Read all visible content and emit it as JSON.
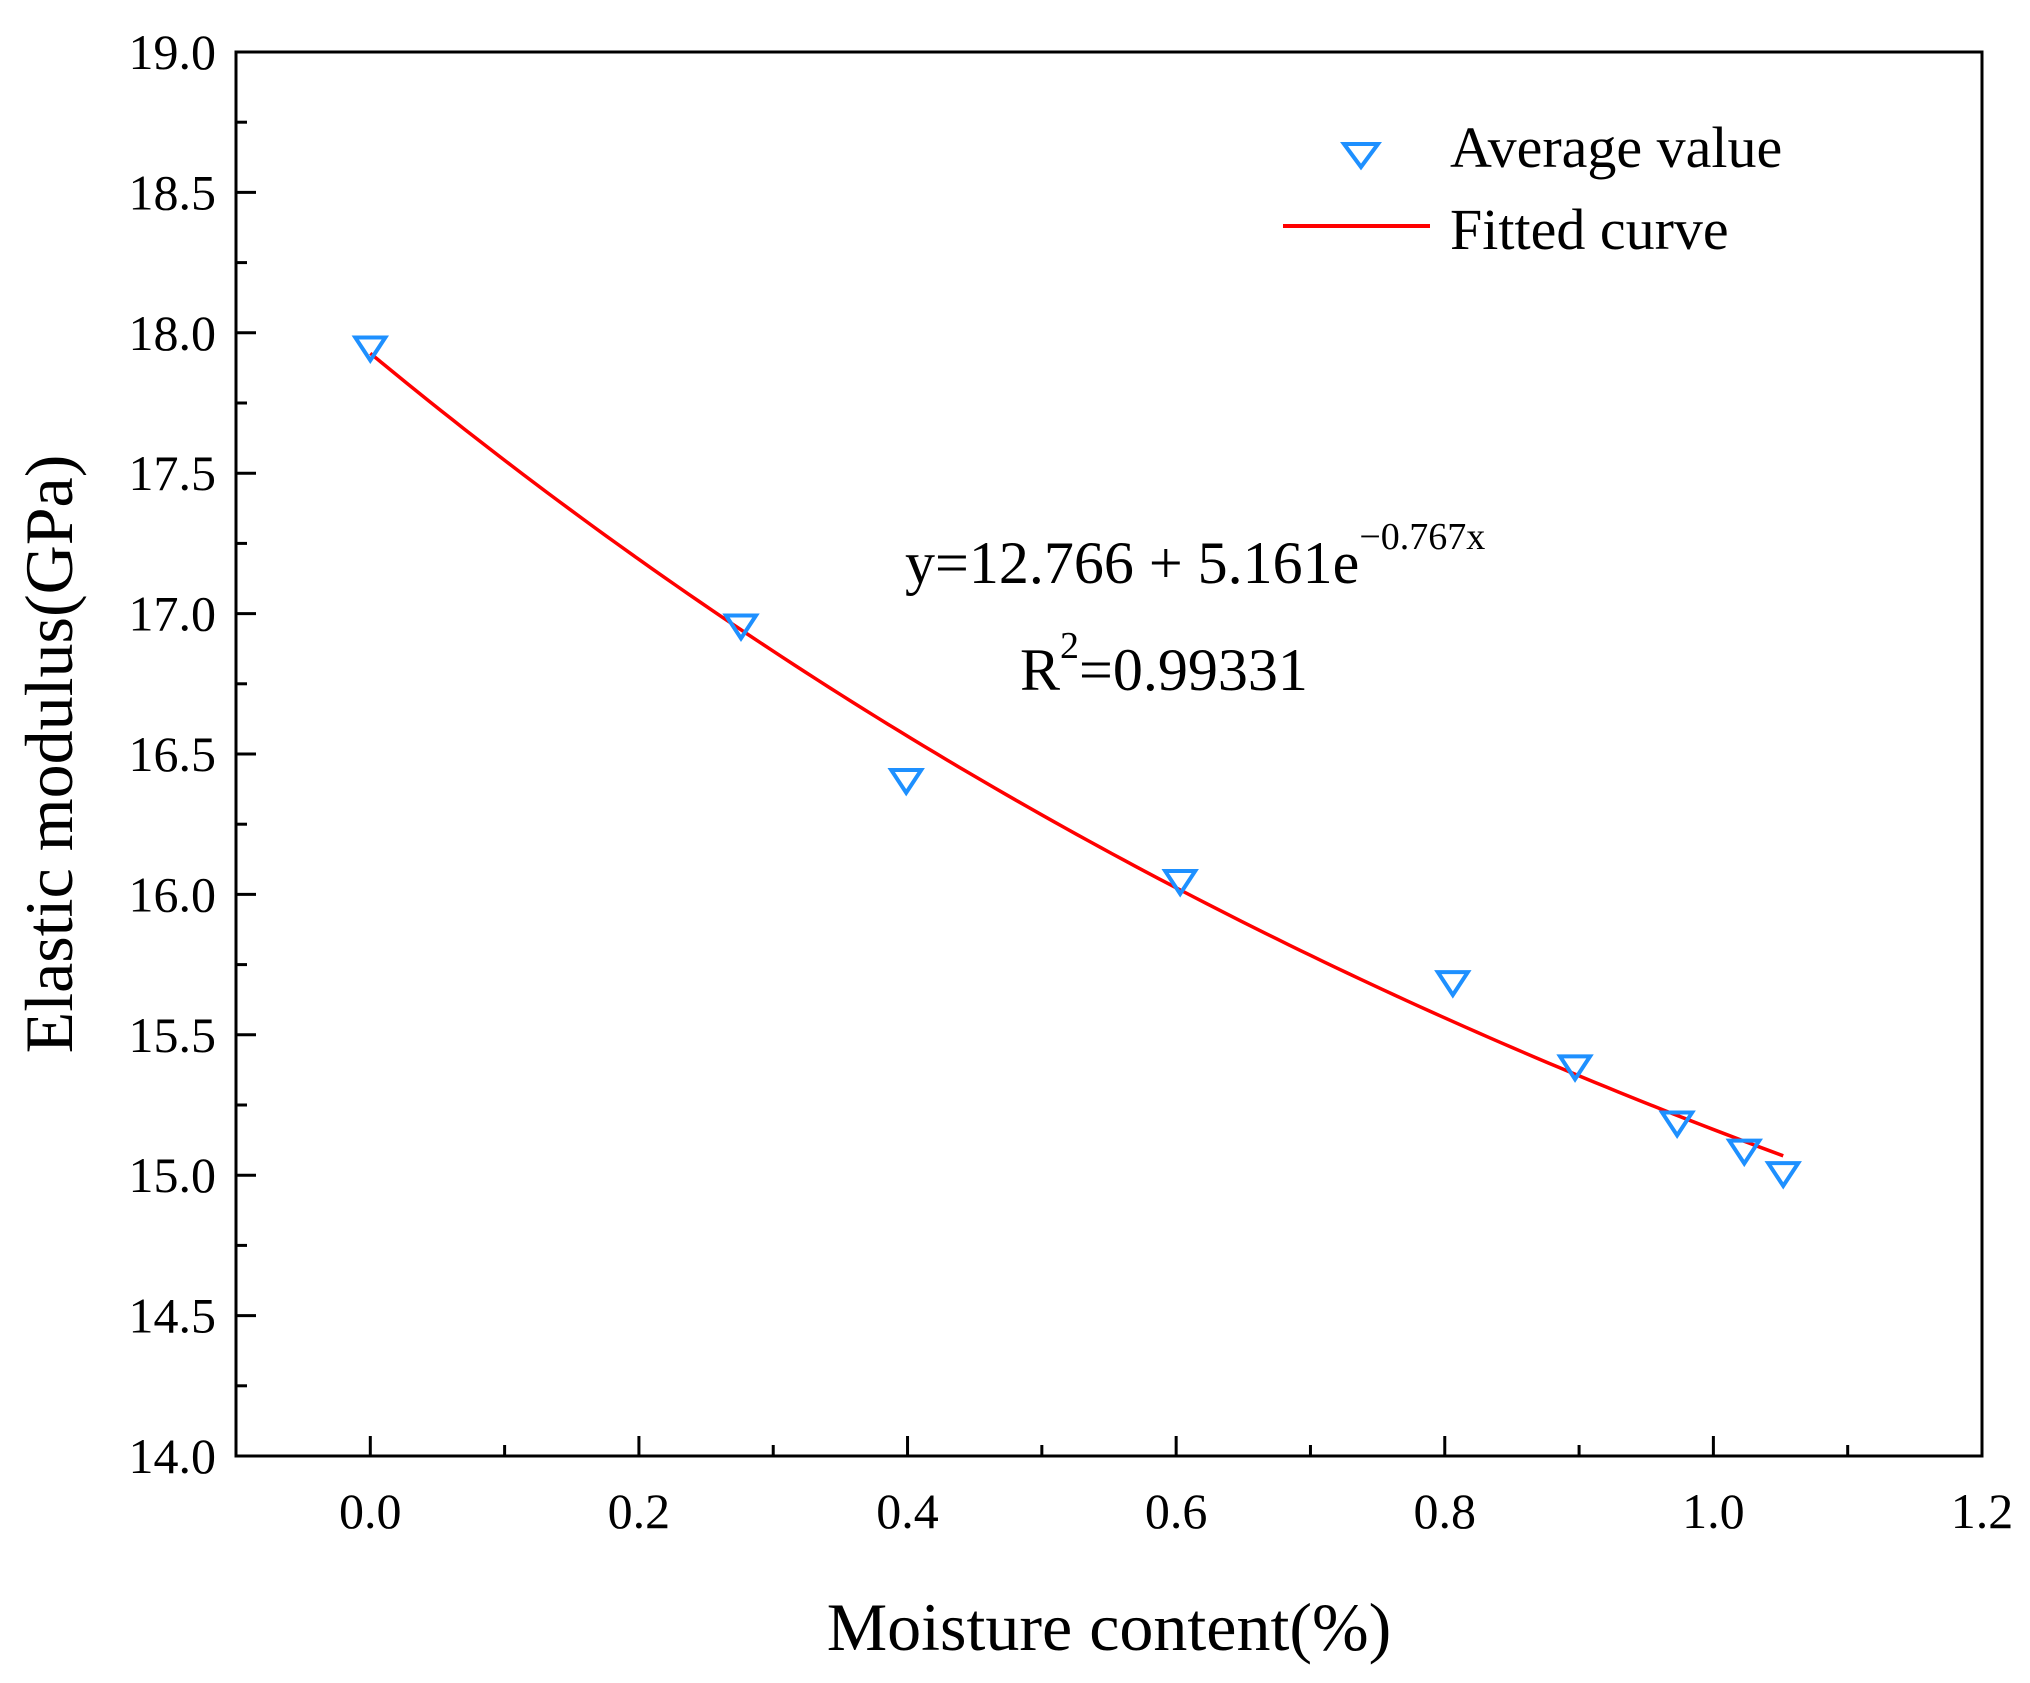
{
  "chart_data": {
    "type": "scatter",
    "title": "",
    "xlabel": "Moisture content(%)",
    "ylabel": "Elastic modulus(GPa)",
    "xlim": [
      -0.1,
      1.2
    ],
    "ylim": [
      14.0,
      19.0
    ],
    "x_ticks": [
      0.0,
      0.2,
      0.4,
      0.6,
      0.8,
      1.0,
      1.2
    ],
    "x_tick_labels": [
      "0.0",
      "0.2",
      "0.4",
      "0.6",
      "0.8",
      "1.0",
      "1.2"
    ],
    "y_ticks": [
      14.0,
      14.5,
      15.0,
      15.5,
      16.0,
      16.5,
      17.0,
      17.5,
      18.0,
      18.5,
      19.0
    ],
    "y_tick_labels": [
      "14.0",
      "14.5",
      "15.0",
      "15.5",
      "16.0",
      "16.5",
      "17.0",
      "17.5",
      "18.0",
      "18.5",
      "19.0"
    ],
    "grid": false,
    "legend_position": "top-right",
    "series": [
      {
        "name": "Average value",
        "kind": "scatter",
        "marker": "triangle-down",
        "color": "#1E90FF",
        "x": [
          0.0,
          0.276,
          0.399,
          0.603,
          0.806,
          0.897,
          0.973,
          1.023,
          1.052
        ],
        "y": [
          17.95,
          16.96,
          16.41,
          16.05,
          15.69,
          15.39,
          15.19,
          15.09,
          15.01
        ]
      },
      {
        "name": "Fitted curve",
        "kind": "line",
        "color": "#FF0000",
        "equation": {
          "a": 12.766,
          "b": 5.161,
          "c": -0.767
        },
        "x_range": [
          0.0,
          1.052
        ]
      }
    ],
    "annotations": {
      "equation_main": "y=12.766 + 5.161e",
      "equation_exponent": "−0.767x",
      "r2_prefix": "R",
      "r2_superscript": "2",
      "r2_value": "=0.99331"
    }
  }
}
